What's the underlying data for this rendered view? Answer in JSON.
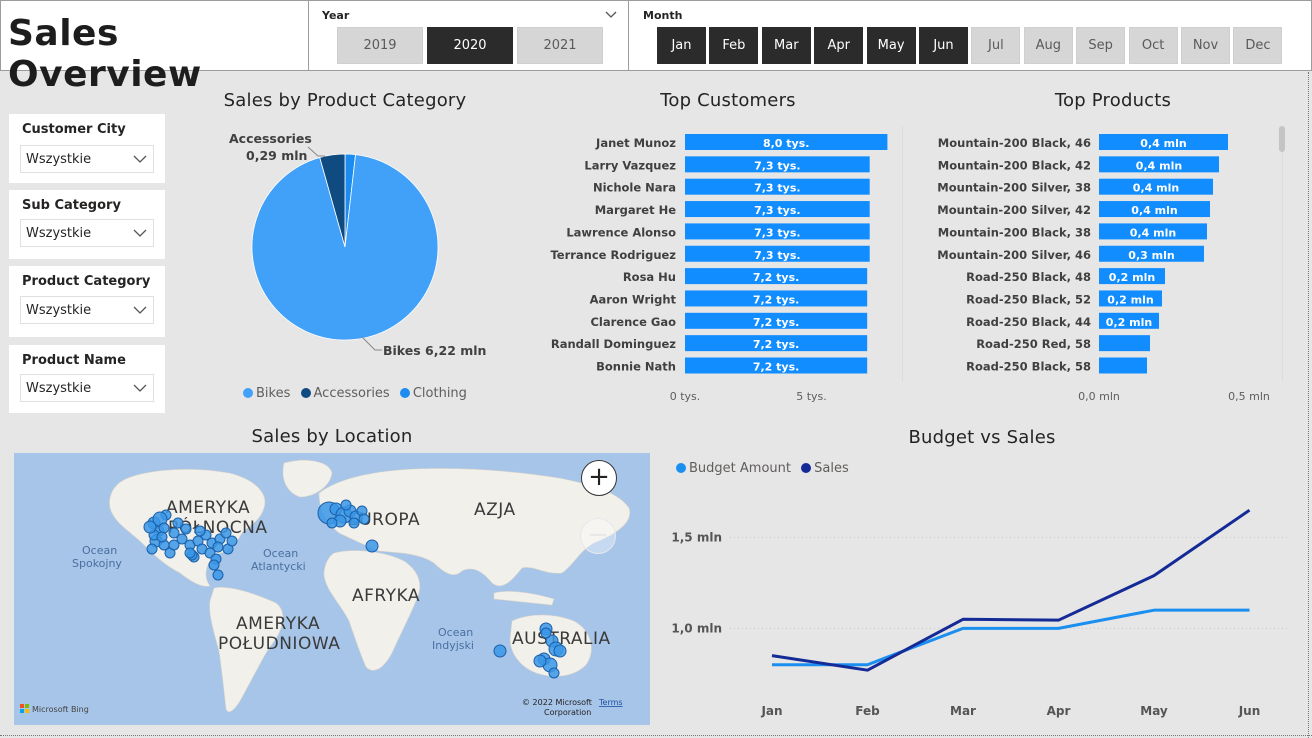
{
  "header": {
    "title": "Sales Overview",
    "year_slicer": {
      "label": "Year",
      "options": [
        "2019",
        "2020",
        "2021"
      ],
      "selected": [
        "2020"
      ]
    },
    "month_slicer": {
      "label": "Month",
      "options": [
        "Jan",
        "Feb",
        "Mar",
        "Apr",
        "May",
        "Jun",
        "Jul",
        "Aug",
        "Sep",
        "Oct",
        "Nov",
        "Dec"
      ],
      "selected": [
        "Jan",
        "Feb",
        "Mar",
        "Apr",
        "May",
        "Jun"
      ]
    }
  },
  "filters": [
    {
      "label": "Customer City",
      "value": "Wszystkie"
    },
    {
      "label": "Sub Category",
      "value": "Wszystkie"
    },
    {
      "label": "Product Category",
      "value": "Wszystkie"
    },
    {
      "label": "Product Name",
      "value": "Wszystkie"
    }
  ],
  "colors": {
    "bikes": "#41a0f7",
    "accessories": "#0f4a80",
    "clothing": "#1d8cf0",
    "bar": "#118dff",
    "budget": "#1b8ff0",
    "sales": "#142a96"
  },
  "chart_data": [
    {
      "type": "pie",
      "title": "Sales by Product Category",
      "categories": [
        "Bikes",
        "Accessories",
        "Clothing"
      ],
      "values": [
        6.22,
        0.29,
        0.12
      ],
      "unit": "mln",
      "data_labels": {
        "bikes": "Bikes 6,22 mln",
        "accessories_name": "Accessories",
        "accessories_value": "0,29 mln"
      },
      "legend": [
        "Bikes",
        "Accessories",
        "Clothing"
      ]
    },
    {
      "type": "bar",
      "orientation": "horizontal",
      "title": "Top Customers",
      "categories": [
        "Janet Munoz",
        "Larry Vazquez",
        "Nichole Nara",
        "Margaret He",
        "Lawrence Alonso",
        "Terrance Rodriguez",
        "Rosa Hu",
        "Aaron Wright",
        "Clarence Gao",
        "Randall Dominguez",
        "Bonnie Nath"
      ],
      "values": [
        8.0,
        7.3,
        7.3,
        7.3,
        7.3,
        7.3,
        7.2,
        7.2,
        7.2,
        7.2,
        7.2
      ],
      "data_labels": [
        "8,0 tys.",
        "7,3 tys.",
        "7,3 tys.",
        "7,3 tys.",
        "7,3 tys.",
        "7,3 tys.",
        "7,2 tys.",
        "7,2 tys.",
        "7,2 tys.",
        "7,2 tys.",
        "7,2 tys."
      ],
      "xlim": [
        0,
        8.3
      ],
      "xticks": [
        0,
        5
      ],
      "xtick_labels": [
        "0 tys.",
        "5 tys."
      ]
    },
    {
      "type": "bar",
      "orientation": "horizontal",
      "title": "Top Products",
      "categories": [
        "Mountain-200 Black, 46",
        "Mountain-200 Black, 42",
        "Mountain-200 Silver, 38",
        "Mountain-200 Silver, 42",
        "Mountain-200 Black, 38",
        "Mountain-200 Silver, 46",
        "Road-250 Black, 48",
        "Road-250 Black, 52",
        "Road-250 Black, 44",
        "Road-250 Red, 58",
        "Road-250 Black, 58"
      ],
      "values": [
        0.43,
        0.4,
        0.38,
        0.37,
        0.36,
        0.35,
        0.22,
        0.21,
        0.2,
        0.17,
        0.16
      ],
      "data_labels": [
        "0,4 mln",
        "0,4 mln",
        "0,4 mln",
        "0,4 mln",
        "0,4 mln",
        "0,3 mln",
        "0,2 mln",
        "0,2 mln",
        "0,2 mln",
        "",
        ""
      ],
      "xlim": [
        0,
        0.62
      ],
      "xticks": [
        0,
        0.5
      ],
      "xtick_labels": [
        "0,0 mln",
        "0,5 mln"
      ]
    },
    {
      "type": "line",
      "title": "Budget vs Sales",
      "categories": [
        "Jan",
        "Feb",
        "Mar",
        "Apr",
        "May",
        "Jun"
      ],
      "series": [
        {
          "name": "Budget Amount",
          "values": [
            0.8,
            0.8,
            1.0,
            1.0,
            1.1,
            1.1
          ]
        },
        {
          "name": "Sales",
          "values": [
            0.85,
            0.77,
            1.05,
            1.045,
            1.29,
            1.65
          ]
        }
      ],
      "ylim": [
        0.65,
        1.75
      ],
      "yticks": [
        1.0,
        1.5
      ],
      "ytick_labels": [
        "1,0 mln",
        "1,5 mln"
      ],
      "legend": [
        "Budget Amount",
        "Sales"
      ]
    }
  ],
  "map": {
    "title": "Sales by Location",
    "labels": [
      "AMERYKA",
      "PÓŁNOCNA",
      "EUROPA",
      "AZJA",
      "AFRYKA",
      "AMERYKA",
      "POŁUDNIOWA",
      "AUSTRALIA"
    ],
    "oceans": [
      [
        "Ocean",
        "Spokojny"
      ],
      [
        "Ocean",
        "Atlantycki"
      ],
      [
        "Ocean",
        "Indyjski"
      ]
    ],
    "attribution": {
      "brand": "Microsoft Bing",
      "copyright": "© 2022 Microsoft",
      "corporation": "Corporation",
      "terms": "Terms"
    },
    "zoom_in": "+",
    "zoom_out": "−"
  }
}
